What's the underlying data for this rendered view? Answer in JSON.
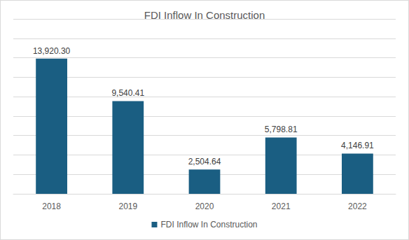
{
  "chart_data": {
    "type": "bar",
    "title": "FDI Inflow In Construction",
    "categories": [
      "2018",
      "2019",
      "2020",
      "2021",
      "2022"
    ],
    "series": [
      {
        "name": "FDI Inflow In Construction",
        "color": "#1a5e82",
        "values": [
          13920.3,
          9540.41,
          2504.64,
          5798.81,
          4146.91
        ],
        "value_labels": [
          "13,920.30",
          "9,540.41",
          "2,504.64",
          "5,798.81",
          "4,146.91"
        ]
      }
    ],
    "ylim": [
      0,
      18000
    ],
    "yticks": [
      0,
      2000,
      4000,
      6000,
      8000,
      10000,
      12000,
      14000,
      16000,
      18000
    ],
    "grid": true,
    "legend": "bottom",
    "data_labels": true,
    "tick_labels": "x"
  }
}
